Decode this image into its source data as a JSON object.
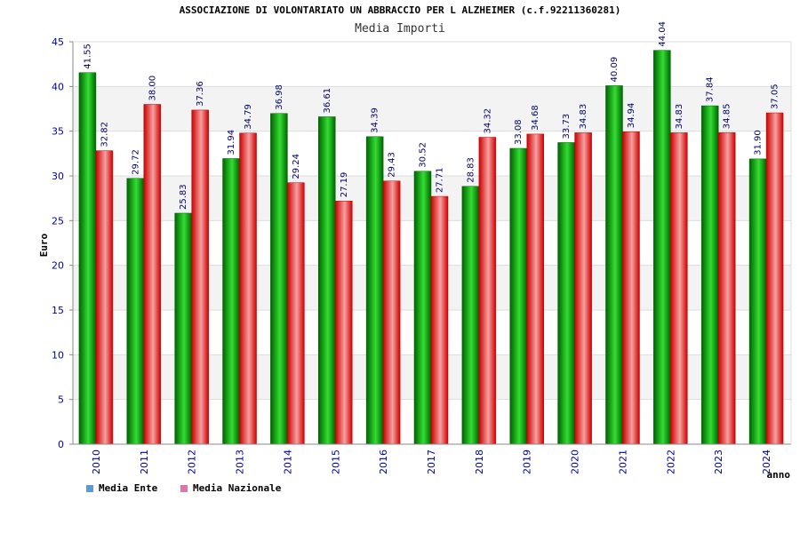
{
  "title": "ASSOCIAZIONE DI VOLONTARIATO UN ABBRACCIO PER L ALZHEIMER (c.f.92211360281)",
  "subtitle": "Media Importi",
  "colors": {
    "ente_dark": "#006400",
    "ente_light": "#33dd33",
    "naz_dark": "#cc0000",
    "naz_light": "#f7a0a0",
    "legend_ente": "#5b9bd5",
    "legend_naz": "#dd77aa",
    "axis_text": "#000099",
    "label_text": "#000066"
  },
  "legend": [
    {
      "label": "Media Ente",
      "color_key": "legend_ente"
    },
    {
      "label": "Media Nazionale",
      "color_key": "legend_naz"
    }
  ],
  "chart_data": {
    "type": "bar",
    "title": "Media Importi",
    "xlabel": "anno",
    "ylabel": "Euro",
    "ylim": [
      0,
      45
    ],
    "yticks": [
      0,
      5,
      10,
      15,
      20,
      25,
      30,
      35,
      40,
      45
    ],
    "grid": true,
    "legend_position": "bottom-left",
    "categories": [
      "2010",
      "2011",
      "2012",
      "2013",
      "2014",
      "2015",
      "2016",
      "2017",
      "2018",
      "2019",
      "2020",
      "2021",
      "2022",
      "2023",
      "2024"
    ],
    "series": [
      {
        "name": "Media Ente",
        "values": [
          41.55,
          29.72,
          25.83,
          31.94,
          36.98,
          36.61,
          34.39,
          30.52,
          28.83,
          33.08,
          33.73,
          40.09,
          44.04,
          37.84,
          31.9
        ]
      },
      {
        "name": "Media Nazionale",
        "values": [
          32.82,
          38.0,
          37.36,
          34.79,
          29.24,
          27.19,
          29.43,
          27.71,
          34.32,
          34.68,
          34.83,
          34.94,
          34.83,
          34.85,
          37.05
        ]
      }
    ]
  }
}
